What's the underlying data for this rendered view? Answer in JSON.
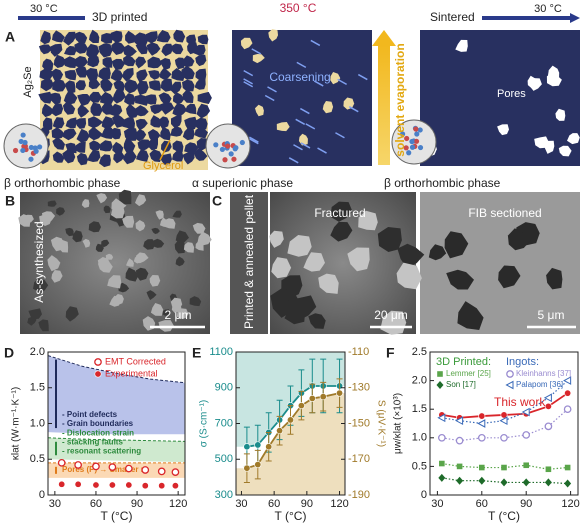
{
  "header": {
    "left_temp": "30 °C",
    "stage1": "3D printed",
    "mid_temp": "350 °C",
    "stage2": "Sintered",
    "right_temp": "30 °C"
  },
  "panel_a": {
    "label": "A",
    "material": "Ag₂Se",
    "glycerol": "Glycerol",
    "phase1": "β orthorhombic phase",
    "coarsening": "Coarsening",
    "phase2": "α superionic phase",
    "evaporation": "solvent evaporation",
    "pores": "Pores",
    "phase3": "β orthorhombic phase"
  },
  "panel_b": {
    "label": "B",
    "caption": "As-synthesized",
    "scale": "2 μm"
  },
  "panel_c": {
    "label": "C",
    "caption": "Printed & annealed pellet",
    "left": "Fractured",
    "left_scale": "20 μm",
    "right": "FIB sectioned",
    "right_scale": "5 μm"
  },
  "chart_data": [
    {
      "type": "line",
      "label": "D",
      "xlabel": "T (°C)",
      "ylabel": "κlat (W·m⁻¹·K⁻¹)",
      "xlim": [
        25,
        125
      ],
      "xticks": [
        30,
        60,
        90,
        120
      ],
      "ylim": [
        0,
        2
      ],
      "yticks": [
        0,
        0.5,
        {
          "value": 1,
          "label": "1.0"
        },
        1.5,
        {
          "value": 2,
          "label": "2.0"
        }
      ],
      "legend": "upper right",
      "regions": [
        {
          "color": "#b9c2ea",
          "edge": "#1f2a5a",
          "labels": [
            "- Point defects",
            "- Grain boundaries"
          ],
          "x": [
            25,
            50,
            75,
            100,
            125
          ],
          "upper": [
            1.95,
            1.8,
            1.7,
            1.62,
            1.57
          ],
          "lower": [
            0.88,
            0.86,
            0.85,
            0.85,
            0.85
          ]
        },
        {
          "color": "#cfe9cf",
          "edge": "#2e8b3e",
          "labels": [
            "- Dislocation strain",
            "- stacking faults",
            "- resonant scattering"
          ],
          "x": [
            25,
            50,
            75,
            100,
            125
          ],
          "upper": [
            0.8,
            0.78,
            0.77,
            0.76,
            0.75
          ],
          "lower": [
            0.5,
            0.49,
            0.48,
            0.47,
            0.46
          ]
        },
        {
          "color": "#fbd9b5",
          "edge": "#e07b1a",
          "labels": [
            "Pores (P) → Smaller κ"
          ],
          "x": [
            25,
            50,
            75,
            100,
            125
          ],
          "upper": [
            0.45,
            0.45,
            0.45,
            0.45,
            0.45
          ],
          "lower": [
            0.24,
            0.24,
            0.24,
            0.24,
            0.24
          ]
        }
      ],
      "x": [
        35,
        47,
        60,
        72,
        84,
        96,
        108,
        118
      ],
      "series": [
        {
          "name": "EMT Corrected",
          "color": "#d9262b",
          "marker": "open-circle",
          "line": "none",
          "values": [
            0.45,
            0.42,
            0.4,
            0.39,
            0.37,
            0.35,
            0.33,
            0.32
          ]
        },
        {
          "name": "Experimental",
          "color": "#d9262b",
          "marker": "circle",
          "line": "none",
          "values": [
            0.15,
            0.15,
            0.14,
            0.14,
            0.14,
            0.13,
            0.13,
            0.13
          ]
        }
      ]
    },
    {
      "type": "line",
      "label": "E",
      "xlabel": "T (°C)",
      "ylabel": "σ (S·cm⁻¹)",
      "y2label": "S (μV·K⁻¹)",
      "xlim": [
        25,
        125
      ],
      "xticks": [
        30,
        60,
        90,
        120
      ],
      "ylim": [
        300,
        1100
      ],
      "yticks": [
        300,
        500,
        700,
        900,
        1100
      ],
      "ycolor": "#1a8c8c",
      "y2lim": [
        -190,
        -110
      ],
      "y2ticks": [
        -190,
        -170,
        -150,
        -130,
        -110
      ],
      "y2color": "#a07a2a",
      "x": [
        35,
        45,
        55,
        65,
        75,
        85,
        95,
        105,
        120
      ],
      "series": [
        {
          "name": "σ",
          "color": "#1a8c8c",
          "marker": "circle",
          "line": "solid",
          "fill": "above",
          "fill_color": "#c8e5e1",
          "values": [
            570,
            580,
            650,
            720,
            800,
            870,
            910,
            910,
            910
          ],
          "errors": [
            110,
            110,
            110,
            110,
            110,
            130,
            150,
            150,
            150
          ]
        },
        {
          "name": "S",
          "axis": "y2",
          "color": "#a07a2a",
          "marker": "circle",
          "line": "solid",
          "fill": "below",
          "fill_color": "#eedfbe",
          "values": [
            -175,
            -173,
            -163,
            -154,
            -148,
            -140,
            -136,
            -135,
            -133
          ],
          "errors": [
            8,
            8,
            8,
            8,
            8,
            8,
            8,
            8,
            8
          ]
        }
      ]
    },
    {
      "type": "line",
      "label": "F",
      "xlabel": "T (°C)",
      "ylabel": "μw/κlat (×10³)",
      "xlim": [
        25,
        125
      ],
      "xticks": [
        30,
        60,
        90,
        120
      ],
      "ylim": [
        0,
        2.5
      ],
      "yticks": [
        0,
        0.5,
        {
          "value": 1,
          "label": "1.0"
        },
        1.5,
        {
          "value": 2,
          "label": "2.0"
        },
        2.5
      ],
      "legend_titles": [
        {
          "text": "3D Printed:",
          "color": "#3a9a3a"
        },
        {
          "text": "Ingots:",
          "color": "#3a6ab8"
        }
      ],
      "x": [
        33,
        45,
        60,
        75,
        90,
        105,
        118
      ],
      "series": [
        {
          "name": "This work",
          "color": "#d9262b",
          "marker": "circle",
          "line": "solid",
          "name_on_curve": true,
          "values": [
            1.4,
            1.35,
            1.38,
            1.4,
            1.42,
            1.55,
            1.78
          ]
        },
        {
          "name": "Lemmer [25]",
          "color": "#5aa54a",
          "marker": "square",
          "line": "dotted",
          "values": [
            0.55,
            0.5,
            0.48,
            0.48,
            0.52,
            0.45,
            0.48
          ]
        },
        {
          "name": "Son [17]",
          "color": "#1e6b2a",
          "marker": "diamond",
          "line": "dotted",
          "values": [
            0.3,
            0.25,
            0.25,
            0.22,
            0.22,
            0.22,
            0.2
          ]
        },
        {
          "name": "Kleinhanns [37]",
          "color": "#9a8cd0",
          "marker": "open-circle",
          "line": "dotted",
          "values": [
            1.0,
            0.95,
            1.0,
            1.0,
            1.05,
            1.2,
            1.5
          ]
        },
        {
          "name": "Palapom [36]",
          "color": "#3a6ab8",
          "marker": "triangle",
          "line": "dotted",
          "values": [
            1.35,
            1.3,
            1.25,
            1.3,
            1.45,
            1.7,
            2.0
          ]
        }
      ]
    }
  ]
}
